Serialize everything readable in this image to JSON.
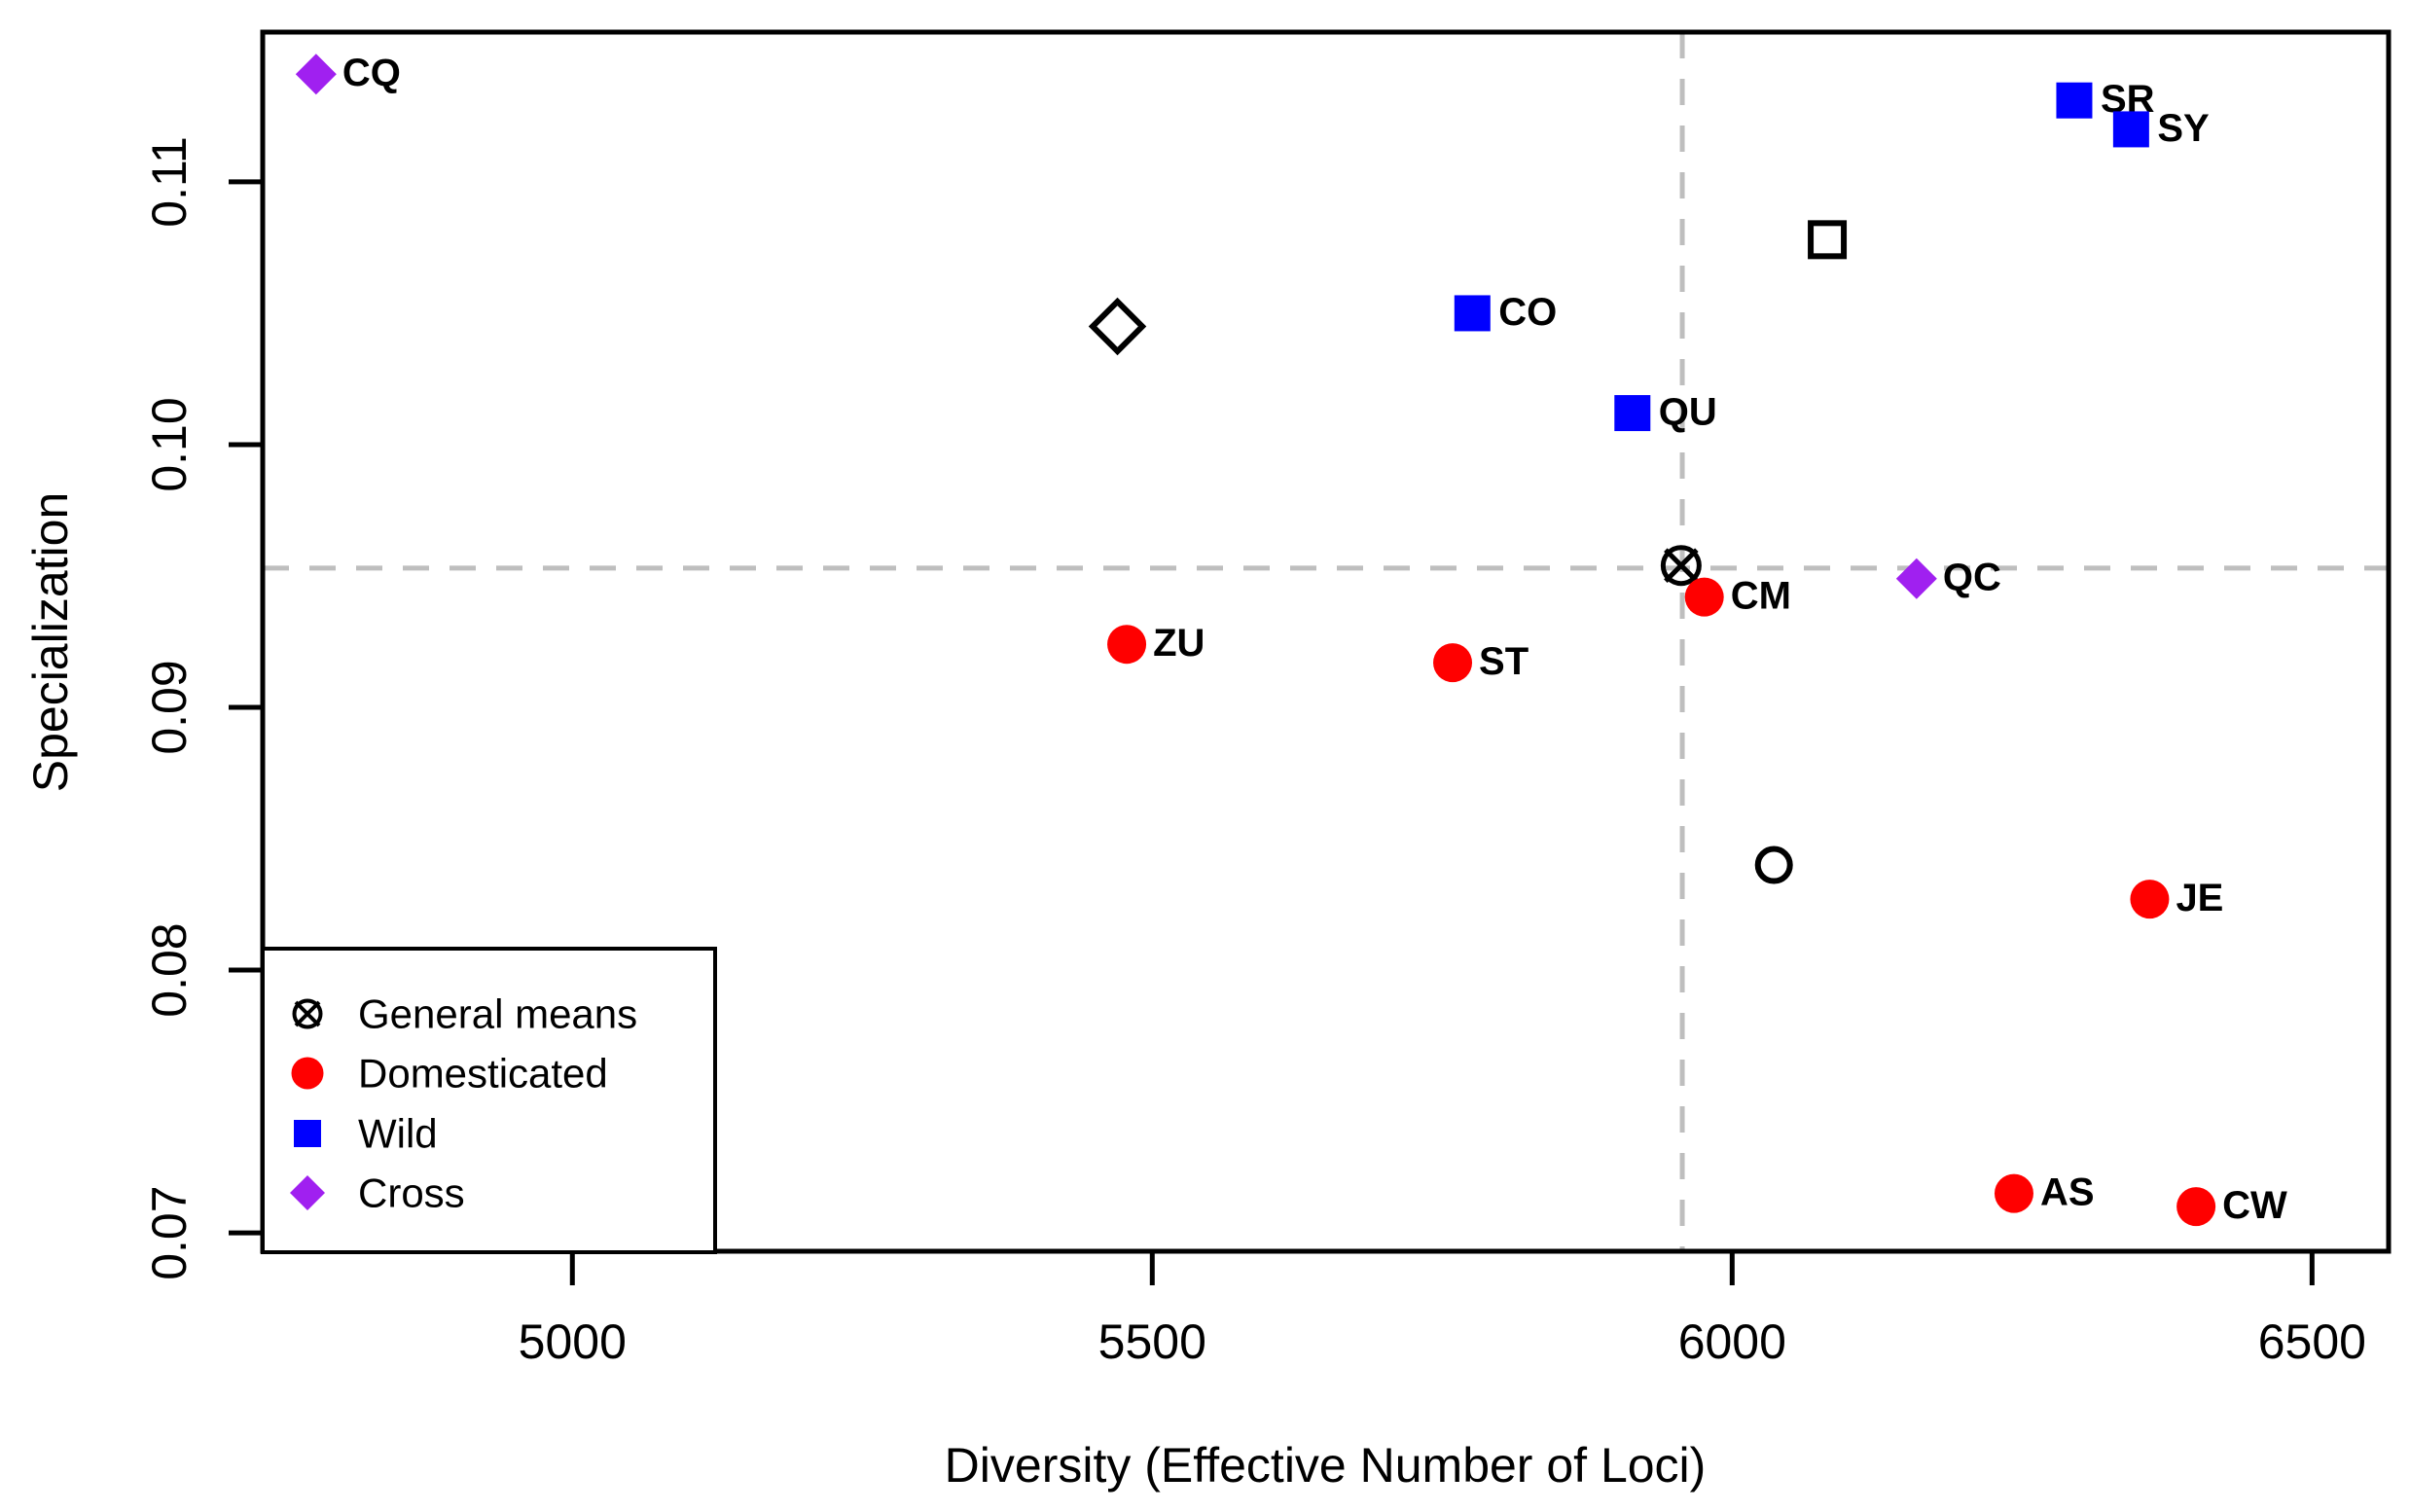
{
  "figure": {
    "background": "#FFFFFF"
  },
  "chart_data": {
    "type": "scatter",
    "xlabel": "Diversity (Effective Number of Loci)",
    "ylabel": "Specialization",
    "xlim": [
      4733,
      6566
    ],
    "ylim": [
      0.0693,
      0.1157
    ],
    "grid": false,
    "legend_position": "bottom-left",
    "x_ticks": [
      {
        "value": 5000,
        "label": "5000"
      },
      {
        "value": 5500,
        "label": "5500"
      },
      {
        "value": 6000,
        "label": "6000"
      },
      {
        "value": 6500,
        "label": "6500"
      }
    ],
    "y_ticks": [
      {
        "value": 0.07,
        "label": "0.07"
      },
      {
        "value": 0.08,
        "label": "0.08"
      },
      {
        "value": 0.09,
        "label": "0.09"
      },
      {
        "value": 0.1,
        "label": "0.10"
      },
      {
        "value": 0.11,
        "label": "0.11"
      }
    ],
    "colors": {
      "domesticated": "#FF0000",
      "wild": "#0000FF",
      "cross": "#A020F0",
      "general_mean": "#000000",
      "crosshair": "#BEBEBE",
      "axis": "#000000"
    },
    "crosshair": {
      "x": 5957,
      "y": 0.0953
    },
    "points": [
      {
        "id": "CQ",
        "label": "CQ",
        "group": "cross",
        "marker": "filled-diamond",
        "x": 4779,
        "y": 0.1141
      },
      {
        "id": "open_diamond",
        "label": "",
        "group": "general_mean",
        "marker": "open-diamond",
        "x": 5470,
        "y": 0.1045
      },
      {
        "id": "CO",
        "label": "CO",
        "group": "wild",
        "marker": "filled-square",
        "x": 5776,
        "y": 0.105
      },
      {
        "id": "QU",
        "label": "QU",
        "group": "wild",
        "marker": "filled-square",
        "x": 5914,
        "y": 0.1012
      },
      {
        "id": "open_square",
        "label": "",
        "group": "general_mean",
        "marker": "open-square",
        "x": 6082,
        "y": 0.1078
      },
      {
        "id": "SR",
        "label": "SR",
        "group": "wild",
        "marker": "filled-square",
        "x": 6295,
        "y": 0.1131
      },
      {
        "id": "SY",
        "label": "SY",
        "group": "wild",
        "marker": "filled-square",
        "x": 6344,
        "y": 0.112
      },
      {
        "id": "general_means",
        "label": "",
        "group": "general_mean",
        "marker": "circle-x",
        "x": 5956,
        "y": 0.0954
      },
      {
        "id": "CM",
        "label": "CM",
        "group": "domesticated",
        "marker": "filled-circle",
        "x": 5976,
        "y": 0.0942
      },
      {
        "id": "QC",
        "label": "QC",
        "group": "cross",
        "marker": "filled-diamond",
        "x": 6159,
        "y": 0.0949
      },
      {
        "id": "ZU",
        "label": "ZU",
        "group": "domesticated",
        "marker": "filled-circle",
        "x": 5478,
        "y": 0.0924
      },
      {
        "id": "ST",
        "label": "ST",
        "group": "domesticated",
        "marker": "filled-circle",
        "x": 5759,
        "y": 0.0917
      },
      {
        "id": "open_circle",
        "label": "",
        "group": "general_mean",
        "marker": "open-circle",
        "x": 6036,
        "y": 0.084
      },
      {
        "id": "JE",
        "label": "JE",
        "group": "domesticated",
        "marker": "filled-circle",
        "x": 6360,
        "y": 0.0827
      },
      {
        "id": "AS",
        "label": "AS",
        "group": "domesticated",
        "marker": "filled-circle",
        "x": 6243,
        "y": 0.0715
      },
      {
        "id": "CW",
        "label": "CW",
        "group": "domesticated",
        "marker": "filled-circle",
        "x": 6400,
        "y": 0.071
      }
    ],
    "legend": [
      {
        "label": "General means",
        "marker": "circle-x",
        "color": "#000000"
      },
      {
        "label": "Domesticated",
        "marker": "filled-circle",
        "color": "#FF0000"
      },
      {
        "label": "Wild",
        "marker": "filled-square",
        "color": "#0000FF"
      },
      {
        "label": "Cross",
        "marker": "filled-diamond",
        "color": "#A020F0"
      }
    ]
  }
}
